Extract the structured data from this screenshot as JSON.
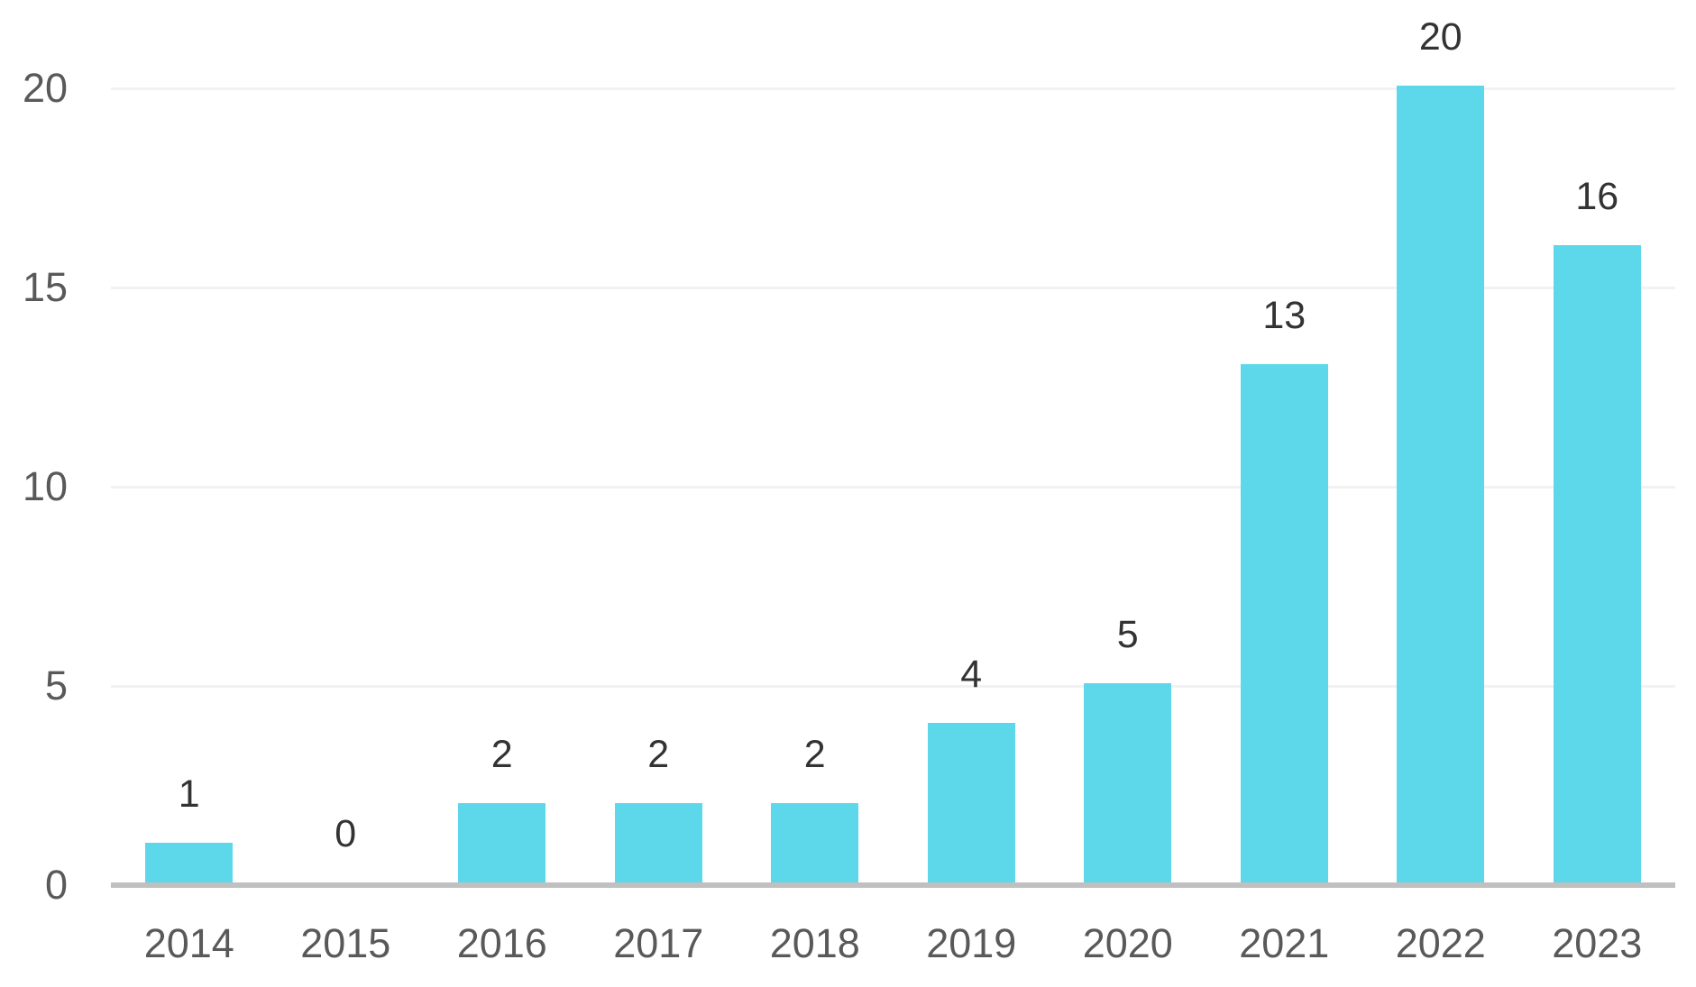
{
  "chart_data": {
    "type": "bar",
    "title": "",
    "xlabel": "",
    "ylabel": "",
    "categories": [
      "2014",
      "2015",
      "2016",
      "2017",
      "2018",
      "2019",
      "2020",
      "2021",
      "2022",
      "2023"
    ],
    "values": [
      1,
      0,
      2,
      2,
      2,
      4,
      5,
      13,
      20,
      16
    ],
    "data_labels": [
      "1",
      "0",
      "2",
      "2",
      "2",
      "4",
      "5",
      "13",
      "20",
      "16"
    ],
    "ylim": [
      0,
      20
    ],
    "yticks": [
      0,
      5,
      10,
      15,
      20
    ],
    "ytick_labels": [
      "0",
      "5",
      "10",
      "15",
      "20"
    ],
    "grid": "horizontal",
    "legend": "none",
    "colors": {
      "bar": "#5DD8EB",
      "axis_line": "#C0C0C0",
      "gridline": "#F2F2F2",
      "tick_label": "#595959",
      "data_label": "#333333"
    }
  }
}
